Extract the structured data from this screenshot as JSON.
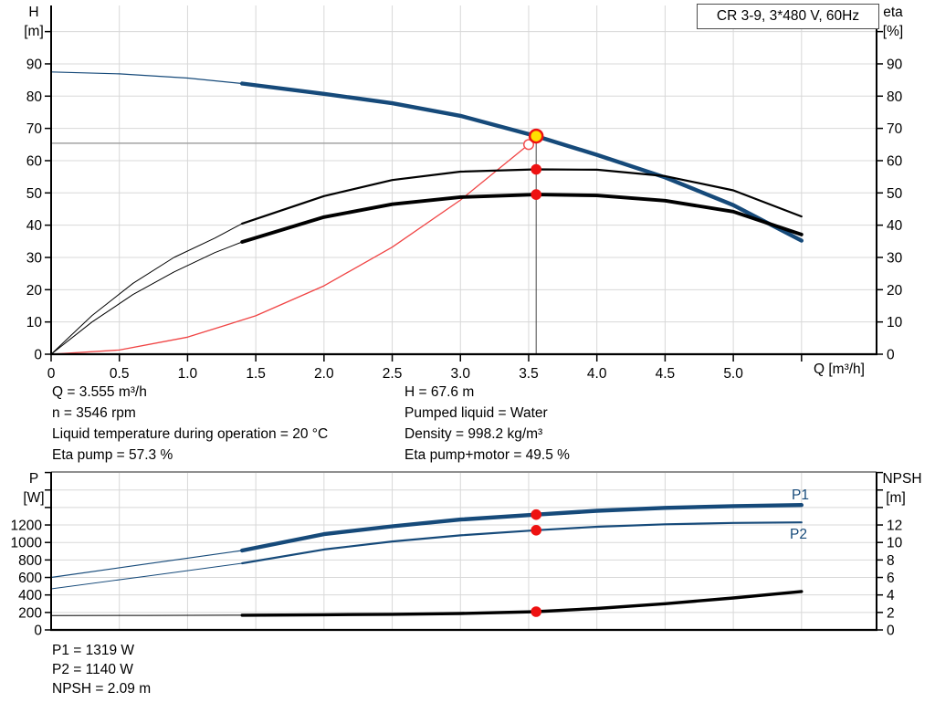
{
  "window": {
    "title_box": "CR 3-9, 3*480 V, 60Hz"
  },
  "labels": {
    "h_axis": "H",
    "h_axis_unit": "[m]",
    "eta_axis": "eta",
    "eta_axis_unit": "[%]",
    "p_axis": "P",
    "p_axis_unit": "[W]",
    "npsh_axis": "NPSH",
    "npsh_axis_unit": "[m]",
    "q_axis": "Q [m³/h]",
    "p1": "P1",
    "p2": "P2"
  },
  "info": {
    "left": [
      "Q = 3.555 m³/h",
      "n = 3546 rpm",
      "Liquid temperature during operation = 20 °C",
      "Eta pump = 57.3 %"
    ],
    "right": [
      "H = 67.6 m",
      "Pumped liquid = Water",
      "Density = 998.2 kg/m³",
      "Eta pump+motor = 49.5 %"
    ],
    "bottom": [
      "P1 = 1319 W",
      "P2 = 1140 W",
      "NPSH = 2.09 m"
    ]
  },
  "operating_point": {
    "q_m3h": 3.555,
    "h_m": 67.6,
    "n_rpm": 3546,
    "eta_pump_pct": 57.3,
    "eta_pump_motor_pct": 49.5,
    "p1_w": 1319,
    "p2_w": 1140,
    "npsh_m": 2.09,
    "liquid": "Water",
    "density_kg_m3": 998.2,
    "liquid_temp_c": 20
  },
  "chart_data": [
    {
      "type": "line",
      "title": "CR 3-9, 3*480 V, 60Hz",
      "xlabel": "Q [m³/h]",
      "ylabel_left": "H [m]",
      "ylabel_right": "eta [%]",
      "grid": true,
      "x_range": [
        0,
        6.05
      ],
      "x_ticks": [
        0,
        0.5,
        1,
        1.5,
        2,
        2.5,
        3,
        3.5,
        4,
        4.5,
        5,
        5.5
      ],
      "x_tick_labels": [
        "0",
        "0.5",
        "1.0",
        "1.5",
        "2.0",
        "2.5",
        "3.0",
        "3.5",
        "4.0",
        "4.5",
        "5.0"
      ],
      "y_left": {
        "max": 108.1,
        "step": 10,
        "label_max": 90
      },
      "y_right": {
        "max": 108.1,
        "step": 10,
        "label_max": 90
      },
      "series": [
        {
          "name": "system curve",
          "color": "#F04444",
          "width": 1.3,
          "points": [
            [
              0,
              0
            ],
            [
              0.5,
              1.3
            ],
            [
              1,
              5.3
            ],
            [
              1.5,
              11.9
            ],
            [
              2,
              21.2
            ],
            [
              2.5,
              33.2
            ],
            [
              3,
              47.8
            ],
            [
              3.5,
              65
            ],
            [
              3.555,
              67.6
            ]
          ]
        },
        {
          "name": "pump curve H-Q",
          "color": "#164A7A",
          "width": 4.4,
          "width_thin": 1.2,
          "thick_from": 1.4,
          "points": [
            [
              0,
              87.5
            ],
            [
              0.5,
              86.9
            ],
            [
              1,
              85.6
            ],
            [
              1.4,
              83.9
            ],
            [
              2,
              80.7
            ],
            [
              2.5,
              77.8
            ],
            [
              3,
              73.9
            ],
            [
              3.555,
              67.6
            ],
            [
              4,
              61.8
            ],
            [
              4.5,
              54.8
            ],
            [
              5,
              46.2
            ],
            [
              5.5,
              35.2
            ]
          ]
        },
        {
          "name": "eta pump",
          "color": "#000000",
          "width": 2.2,
          "width_thin": 1,
          "thick_from": 1.4,
          "points": [
            [
              0,
              0
            ],
            [
              0.3,
              12
            ],
            [
              0.6,
              22
            ],
            [
              0.9,
              30
            ],
            [
              1.2,
              36
            ],
            [
              1.4,
              40.5
            ],
            [
              2,
              49
            ],
            [
              2.5,
              54
            ],
            [
              3,
              56.6
            ],
            [
              3.555,
              57.3
            ],
            [
              4,
              57.2
            ],
            [
              4.5,
              55.2
            ],
            [
              5,
              50.8
            ],
            [
              5.5,
              42.7
            ]
          ]
        },
        {
          "name": "eta pump plus motor",
          "color": "#000000",
          "width": 3.9,
          "width_thin": 1,
          "thick_from": 1.4,
          "points": [
            [
              0,
              0
            ],
            [
              0.3,
              10
            ],
            [
              0.6,
              18.5
            ],
            [
              0.9,
              25.5
            ],
            [
              1.2,
              31.5
            ],
            [
              1.4,
              34.8
            ],
            [
              2,
              42.5
            ],
            [
              2.5,
              46.5
            ],
            [
              3,
              48.7
            ],
            [
              3.555,
              49.5
            ],
            [
              4,
              49.2
            ],
            [
              4.5,
              47.6
            ],
            [
              5,
              44.2
            ],
            [
              5.5,
              37.1
            ]
          ]
        }
      ],
      "guides": {
        "h_line": {
          "h": 65.4,
          "q_end": 3.46
        },
        "v_line": {
          "q": 3.555,
          "h_top": 67.6
        }
      },
      "markers": [
        {
          "name": "requested duty point",
          "x": 3.5,
          "y": 65,
          "style": "open-circle"
        },
        {
          "name": "operating point",
          "x": 3.555,
          "y": 67.6,
          "style": "yellow-dot"
        },
        {
          "name": "eta pump at duty",
          "x": 3.555,
          "y": 57.3,
          "style": "red-dot"
        },
        {
          "name": "eta pump motor at duty",
          "x": 3.555,
          "y": 49.5,
          "style": "red-dot"
        }
      ]
    },
    {
      "type": "line",
      "title": "",
      "xlabel": "Q [m³/h]",
      "ylabel_left": "P [W]",
      "ylabel_right": "NPSH [m]",
      "grid": true,
      "x_range": [
        0,
        6.05
      ],
      "x_ticks": [
        0,
        0.5,
        1,
        1.5,
        2,
        2.5,
        3,
        3.5,
        4,
        4.5,
        5,
        5.5
      ],
      "x_tick_labels": [],
      "y_left": {
        "max": 1806,
        "step": 200,
        "label_max": 1200
      },
      "y_right": {
        "max": 18.06,
        "step": 2,
        "label_max": 12
      },
      "series": [
        {
          "name": "P2 power curve",
          "axis": "left",
          "color": "#164A7A",
          "width": 2.2,
          "width_thin": 1,
          "thick_from": 1.4,
          "points": [
            [
              0,
              470
            ],
            [
              0.7,
              615
            ],
            [
              1.4,
              762
            ],
            [
              2,
              920
            ],
            [
              2.5,
              1012
            ],
            [
              3,
              1082
            ],
            [
              3.555,
              1140
            ],
            [
              4,
              1180
            ],
            [
              4.5,
              1208
            ],
            [
              5,
              1224
            ],
            [
              5.5,
              1230
            ]
          ]
        },
        {
          "name": "P1 power curve",
          "axis": "left",
          "color": "#164A7A",
          "width": 4.4,
          "width_thin": 1.2,
          "thick_from": 1.4,
          "points": [
            [
              0,
              600
            ],
            [
              0.7,
              755
            ],
            [
              1.4,
              908
            ],
            [
              2,
              1095
            ],
            [
              2.5,
              1185
            ],
            [
              3,
              1262
            ],
            [
              3.555,
              1319
            ],
            [
              4,
              1362
            ],
            [
              4.5,
              1396
            ],
            [
              5,
              1416
            ],
            [
              5.5,
              1428
            ]
          ]
        },
        {
          "name": "NPSH curve",
          "axis": "right",
          "color": "#000000",
          "width": 3.4,
          "width_thin": 1,
          "thick_from": 1.4,
          "points": [
            [
              0,
              1.65
            ],
            [
              0.7,
              1.66
            ],
            [
              1.4,
              1.68
            ],
            [
              2,
              1.73
            ],
            [
              2.5,
              1.78
            ],
            [
              3,
              1.88
            ],
            [
              3.555,
              2.09
            ],
            [
              4,
              2.45
            ],
            [
              4.5,
              3
            ],
            [
              5,
              3.65
            ],
            [
              5.5,
              4.4
            ]
          ]
        }
      ],
      "markers": [
        {
          "name": "P1 at duty",
          "x": 3.555,
          "y": 1319,
          "axis": "left",
          "style": "red-dot"
        },
        {
          "name": "P2 at duty",
          "x": 3.555,
          "y": 1140,
          "axis": "left",
          "style": "red-dot"
        },
        {
          "name": "NPSH at duty",
          "x": 3.555,
          "y": 2.09,
          "axis": "right",
          "style": "red-dot"
        }
      ]
    }
  ]
}
